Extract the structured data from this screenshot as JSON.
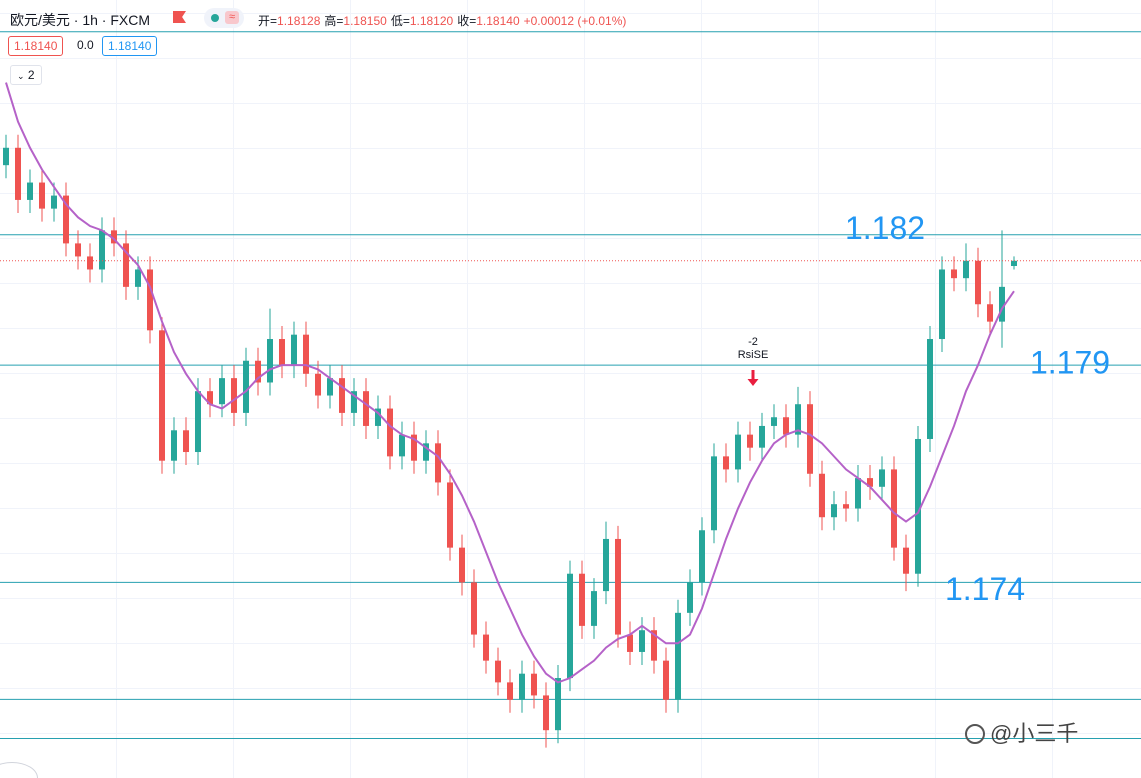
{
  "header": {
    "symbol": "欧元/美元 · 1h · FXCM",
    "ohlc": [
      {
        "label": "开=",
        "value": "1.18128"
      },
      {
        "label": "高=",
        "value": "1.18150"
      },
      {
        "label": "低=",
        "value": "1.18120"
      },
      {
        "label": "收=",
        "value": "1.18140"
      }
    ],
    "change": "+0.00012 (+0.01%)",
    "bid": "1.18140",
    "spread": "0.0",
    "ask": "1.18140",
    "indicator_count": "2"
  },
  "chart_data": {
    "type": "candlestick",
    "open": [
      1.1836,
      1.184,
      1.1828,
      1.1832,
      1.1826,
      1.1829,
      1.1818,
      1.1815,
      1.1812,
      1.1821,
      1.1818,
      1.1808,
      1.1812,
      1.1798,
      1.1768,
      1.1775,
      1.177,
      1.1784,
      1.1781,
      1.1787,
      1.1779,
      1.1791,
      1.1786,
      1.1796,
      1.179,
      1.1797,
      1.1788,
      1.1783,
      1.1787,
      1.1779,
      1.1784,
      1.1776,
      1.178,
      1.1769,
      1.1774,
      1.1768,
      1.1772,
      1.1763,
      1.1748,
      1.174,
      1.1728,
      1.1722,
      1.1717,
      1.1713,
      1.1719,
      1.1714,
      1.1706,
      1.1718,
      1.1742,
      1.173,
      1.1738,
      1.175,
      1.1728,
      1.1724,
      1.1729,
      1.1722,
      1.1713,
      1.1733,
      1.174,
      1.1752,
      1.1769,
      1.1766,
      1.1774,
      1.1771,
      1.1776,
      1.1778,
      1.1774,
      1.1781,
      1.1765,
      1.1755,
      1.1758,
      1.1757,
      1.1764,
      1.1762,
      1.1766,
      1.1748,
      1.1742,
      1.1773,
      1.1796,
      1.1812,
      1.181,
      1.1814,
      1.1804,
      1.18,
      1.18128
    ],
    "high": [
      1.1843,
      1.1843,
      1.1835,
      1.1835,
      1.1832,
      1.1832,
      1.1821,
      1.1818,
      1.1824,
      1.1824,
      1.1821,
      1.1815,
      1.1815,
      1.1801,
      1.1778,
      1.1778,
      1.1787,
      1.1787,
      1.179,
      1.179,
      1.1794,
      1.1794,
      1.1803,
      1.1799,
      1.18,
      1.18,
      1.1791,
      1.179,
      1.179,
      1.1787,
      1.1787,
      1.1783,
      1.1783,
      1.1777,
      1.1777,
      1.1775,
      1.1775,
      1.1766,
      1.1751,
      1.1743,
      1.1731,
      1.1725,
      1.172,
      1.1722,
      1.1722,
      1.1717,
      1.1721,
      1.1745,
      1.1745,
      1.1741,
      1.1754,
      1.1753,
      1.1731,
      1.1732,
      1.1732,
      1.1725,
      1.1736,
      1.1743,
      1.1755,
      1.1772,
      1.1772,
      1.1777,
      1.1777,
      1.1779,
      1.1781,
      1.1781,
      1.1785,
      1.1784,
      1.1768,
      1.1761,
      1.1761,
      1.1767,
      1.1767,
      1.1769,
      1.1769,
      1.1751,
      1.1776,
      1.1799,
      1.1815,
      1.1815,
      1.1818,
      1.1817,
      1.1807,
      1.1821,
      1.1815
    ],
    "low": [
      1.1833,
      1.1825,
      1.1825,
      1.1823,
      1.1823,
      1.1815,
      1.1812,
      1.1809,
      1.1809,
      1.1815,
      1.1805,
      1.1805,
      1.1795,
      1.1765,
      1.1765,
      1.1767,
      1.1767,
      1.1778,
      1.1778,
      1.1776,
      1.1776,
      1.1783,
      1.1783,
      1.1787,
      1.1787,
      1.1785,
      1.178,
      1.178,
      1.1776,
      1.1776,
      1.1773,
      1.1773,
      1.1766,
      1.1766,
      1.1765,
      1.1765,
      1.176,
      1.1745,
      1.1737,
      1.1725,
      1.1719,
      1.1714,
      1.171,
      1.171,
      1.1711,
      1.1702,
      1.1703,
      1.1715,
      1.1727,
      1.1727,
      1.1735,
      1.1725,
      1.1721,
      1.1721,
      1.1719,
      1.171,
      1.171,
      1.173,
      1.1737,
      1.1749,
      1.1763,
      1.1763,
      1.1768,
      1.1768,
      1.1773,
      1.1771,
      1.1771,
      1.1762,
      1.1752,
      1.1752,
      1.1754,
      1.1754,
      1.1759,
      1.1759,
      1.1745,
      1.1738,
      1.1739,
      1.177,
      1.1793,
      1.1807,
      1.1807,
      1.1801,
      1.1797,
      1.1794,
      1.1812
    ],
    "close": [
      1.184,
      1.1828,
      1.1832,
      1.1826,
      1.1829,
      1.1818,
      1.1815,
      1.1812,
      1.1821,
      1.1818,
      1.1808,
      1.1812,
      1.1798,
      1.1768,
      1.1775,
      1.177,
      1.1784,
      1.1781,
      1.1787,
      1.1779,
      1.1791,
      1.1786,
      1.1796,
      1.179,
      1.1797,
      1.1788,
      1.1783,
      1.1787,
      1.1779,
      1.1784,
      1.1776,
      1.178,
      1.1769,
      1.1774,
      1.1768,
      1.1772,
      1.1763,
      1.1748,
      1.174,
      1.1728,
      1.1722,
      1.1717,
      1.1713,
      1.1719,
      1.1714,
      1.1706,
      1.1718,
      1.1742,
      1.173,
      1.1738,
      1.175,
      1.1728,
      1.1724,
      1.1729,
      1.1722,
      1.1713,
      1.1733,
      1.174,
      1.1752,
      1.1769,
      1.1766,
      1.1774,
      1.1771,
      1.1776,
      1.1778,
      1.1774,
      1.1781,
      1.1765,
      1.1755,
      1.1758,
      1.1757,
      1.1764,
      1.1762,
      1.1766,
      1.1748,
      1.1742,
      1.1773,
      1.1796,
      1.1812,
      1.181,
      1.1814,
      1.1804,
      1.18,
      1.1808,
      1.1814
    ],
    "colors": {
      "up": "#26a69a",
      "down": "#ef5350"
    },
    "ma": {
      "color": "#b562c8",
      "values": [
        1.1855,
        1.1846,
        1.184,
        1.1835,
        1.1831,
        1.1827,
        1.1824,
        1.1822,
        1.1821,
        1.1819,
        1.1816,
        1.1813,
        1.1808,
        1.18,
        1.1793,
        1.1788,
        1.1784,
        1.1781,
        1.178,
        1.1782,
        1.1784,
        1.1787,
        1.1789,
        1.179,
        1.179,
        1.179,
        1.1789,
        1.1787,
        1.1785,
        1.1783,
        1.1781,
        1.1779,
        1.1776,
        1.1774,
        1.1773,
        1.1771,
        1.1769,
        1.1765,
        1.176,
        1.1754,
        1.1747,
        1.174,
        1.1734,
        1.1728,
        1.1723,
        1.1719,
        1.1717,
        1.1718,
        1.172,
        1.1722,
        1.1725,
        1.1727,
        1.1728,
        1.173,
        1.1728,
        1.1726,
        1.1726,
        1.1728,
        1.1734,
        1.1742,
        1.175,
        1.1757,
        1.1763,
        1.1768,
        1.1772,
        1.1774,
        1.1775,
        1.1774,
        1.1772,
        1.1769,
        1.1766,
        1.1764,
        1.1762,
        1.1759,
        1.1756,
        1.1754,
        1.1756,
        1.1762,
        1.1769,
        1.1776,
        1.1784,
        1.179,
        1.1797,
        1.1803,
        1.1807
      ]
    },
    "ylim": [
      1.1695,
      1.1874
    ],
    "levels": [
      1.18667,
      1.182,
      1.179,
      1.174,
      1.17131,
      1.17041
    ],
    "level_color": "#26a0b0",
    "signal": {
      "value": "-2",
      "label": "RsiSE"
    },
    "watermark": "@小三千"
  }
}
